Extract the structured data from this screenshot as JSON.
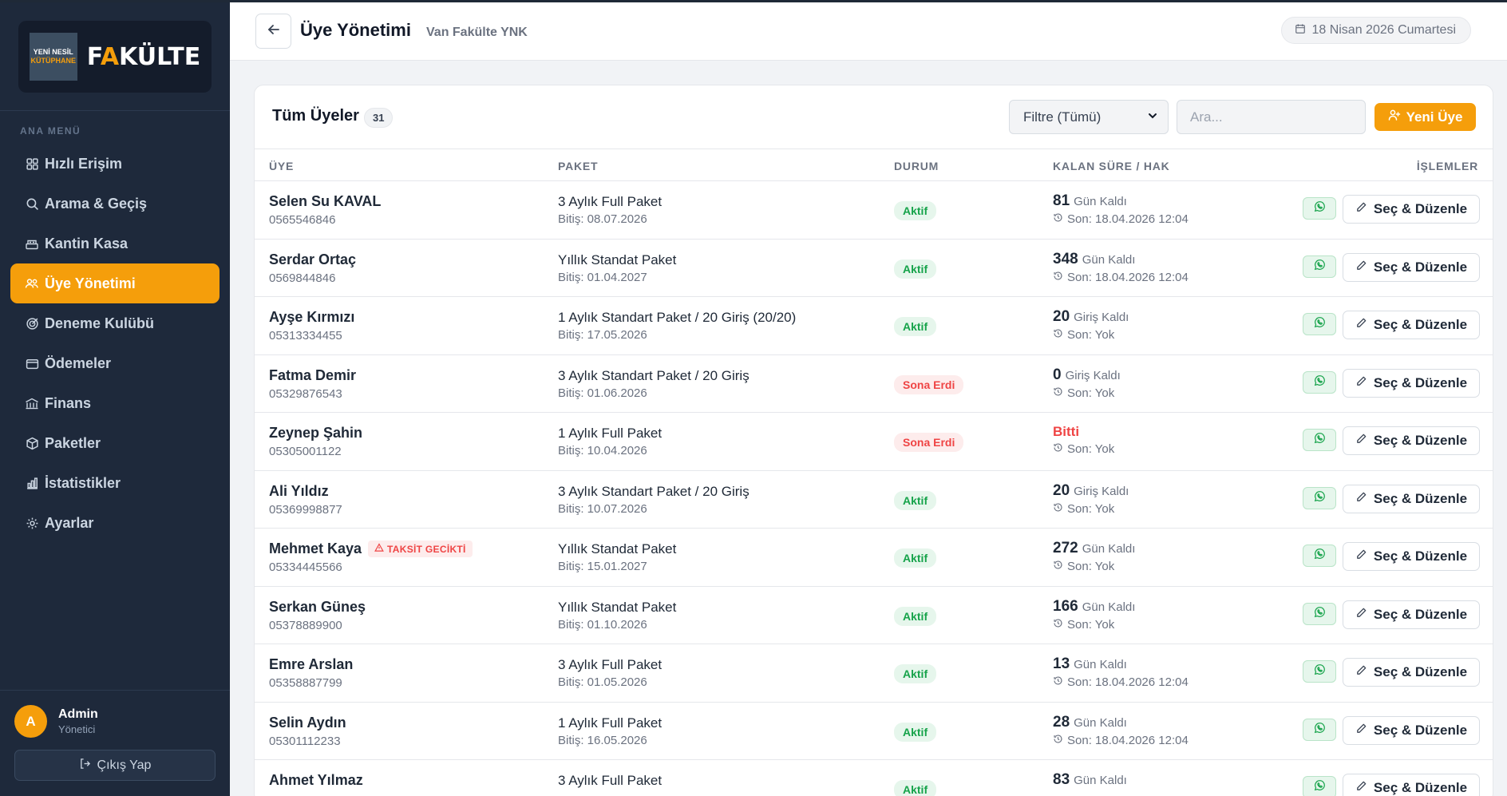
{
  "brand": {
    "badge_line1": "YENİ NESİL",
    "badge_line2": "KÜTÜPHANE",
    "word_pre": "F",
    "word_a": "A",
    "word_post": "KÜLTE"
  },
  "sidebar": {
    "menu_title": "ANA MENÜ",
    "items": [
      {
        "label": "Hızlı Erişim",
        "icon": "grid-icon",
        "active": false
      },
      {
        "label": "Arama & Geçiş",
        "icon": "search-icon",
        "active": false
      },
      {
        "label": "Kantin Kasa",
        "icon": "register-icon",
        "active": false
      },
      {
        "label": "Üye Yönetimi",
        "icon": "users-icon",
        "active": true
      },
      {
        "label": "Deneme Kulübü",
        "icon": "target-icon",
        "active": false
      },
      {
        "label": "Ödemeler",
        "icon": "wallet-icon",
        "active": false
      },
      {
        "label": "Finans",
        "icon": "bank-icon",
        "active": false
      },
      {
        "label": "Paketler",
        "icon": "package-icon",
        "active": false
      },
      {
        "label": "İstatistikler",
        "icon": "bar-chart-icon",
        "active": false
      },
      {
        "label": "Ayarlar",
        "icon": "gear-icon",
        "active": false
      }
    ],
    "user": {
      "initial": "A",
      "name": "Admin",
      "role": "Yönetici"
    },
    "logout_label": "Çıkış Yap"
  },
  "header": {
    "title": "Üye Yönetimi",
    "subtitle": "Van Fakülte YNK",
    "date": "18 Nisan 2026 Cumartesi"
  },
  "members_card": {
    "title": "Tüm Üyeler",
    "count": "31",
    "filter_value": "Filtre (Tümü)",
    "search_placeholder": "Ara...",
    "new_button": "Yeni Üye",
    "columns": {
      "member": "ÜYE",
      "package": "PAKET",
      "status": "DURUM",
      "remaining": "KALAN SÜRE / HAK",
      "actions": "İŞLEMLER"
    },
    "edit_label": "Seç & Düzenle",
    "rows": [
      {
        "name": "Selen Su KAVAL",
        "phone": "0565546846",
        "package": "3 Aylık Full Paket",
        "end": "Bitiş: 08.07.2026",
        "status": "Aktif",
        "status_kind": "ok",
        "remaining_num": "81",
        "remaining_unit": "Gün Kaldı",
        "last": "Son: 18.04.2026 12:04",
        "warning": ""
      },
      {
        "name": "Serdar Ortaç",
        "phone": "0569844846",
        "package": "Yıllık Standat Paket",
        "end": "Bitiş: 01.04.2027",
        "status": "Aktif",
        "status_kind": "ok",
        "remaining_num": "348",
        "remaining_unit": "Gün Kaldı",
        "last": "Son: 18.04.2026 12:04",
        "warning": ""
      },
      {
        "name": "Ayşe Kırmızı",
        "phone": "05313334455",
        "package": "1 Aylık Standart Paket / 20 Giriş (20/20)",
        "end": "Bitiş: 17.05.2026",
        "status": "Aktif",
        "status_kind": "ok",
        "remaining_num": "20",
        "remaining_unit": "Giriş Kaldı",
        "last": "Son: Yok",
        "warning": ""
      },
      {
        "name": "Fatma Demir",
        "phone": "05329876543",
        "package": "3 Aylık Standart Paket / 20 Giriş",
        "end": "Bitiş: 01.06.2026",
        "status": "Sona Erdi",
        "status_kind": "bad",
        "remaining_num": "0",
        "remaining_unit": "Giriş Kaldı",
        "last": "Son: Yok",
        "warning": ""
      },
      {
        "name": "Zeynep Şahin",
        "phone": "05305001122",
        "package": "1 Aylık Full Paket",
        "end": "Bitiş: 10.04.2026",
        "status": "Sona Erdi",
        "status_kind": "bad",
        "remaining_num": "",
        "remaining_unit": "",
        "remaining_done": "Bitti",
        "last": "Son: Yok",
        "warning": ""
      },
      {
        "name": "Ali Yıldız",
        "phone": "05369998877",
        "package": "3 Aylık Standart Paket / 20 Giriş",
        "end": "Bitiş: 10.07.2026",
        "status": "Aktif",
        "status_kind": "ok",
        "remaining_num": "20",
        "remaining_unit": "Giriş Kaldı",
        "last": "Son: Yok",
        "warning": ""
      },
      {
        "name": "Mehmet Kaya",
        "phone": "05334445566",
        "package": "Yıllık Standat Paket",
        "end": "Bitiş: 15.01.2027",
        "status": "Aktif",
        "status_kind": "ok",
        "remaining_num": "272",
        "remaining_unit": "Gün Kaldı",
        "last": "Son: Yok",
        "warning": "TAKSİT GECİKTİ"
      },
      {
        "name": "Serkan Güneş",
        "phone": "05378889900",
        "package": "Yıllık Standat Paket",
        "end": "Bitiş: 01.10.2026",
        "status": "Aktif",
        "status_kind": "ok",
        "remaining_num": "166",
        "remaining_unit": "Gün Kaldı",
        "last": "Son: Yok",
        "warning": ""
      },
      {
        "name": "Emre Arslan",
        "phone": "05358887799",
        "package": "3 Aylık Full Paket",
        "end": "Bitiş: 01.05.2026",
        "status": "Aktif",
        "status_kind": "ok",
        "remaining_num": "13",
        "remaining_unit": "Gün Kaldı",
        "last": "Son: 18.04.2026 12:04",
        "warning": ""
      },
      {
        "name": "Selin Aydın",
        "phone": "05301112233",
        "package": "1 Aylık Full Paket",
        "end": "Bitiş: 16.05.2026",
        "status": "Aktif",
        "status_kind": "ok",
        "remaining_num": "28",
        "remaining_unit": "Gün Kaldı",
        "last": "Son: 18.04.2026 12:04",
        "warning": ""
      },
      {
        "name": "Ahmet Yılmaz",
        "phone": "",
        "package": "3 Aylık Full Paket",
        "end": "",
        "status": "Aktif",
        "status_kind": "ok",
        "remaining_num": "83",
        "remaining_unit": "Gün Kaldı",
        "last": "",
        "warning": ""
      }
    ]
  },
  "colors": {
    "accent": "#f59e0b",
    "sidebar": "#1e293b",
    "active_green": "#16a34a",
    "expired_red": "#ef4444"
  }
}
